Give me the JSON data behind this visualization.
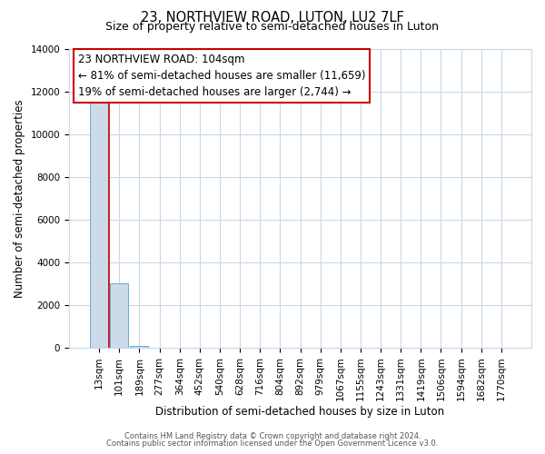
{
  "title": "23, NORTHVIEW ROAD, LUTON, LU2 7LF",
  "subtitle": "Size of property relative to semi-detached houses in Luton",
  "xlabel": "Distribution of semi-detached houses by size in Luton",
  "ylabel": "Number of semi-detached properties",
  "bar_labels": [
    "13sqm",
    "101sqm",
    "189sqm",
    "277sqm",
    "364sqm",
    "452sqm",
    "540sqm",
    "628sqm",
    "716sqm",
    "804sqm",
    "892sqm",
    "979sqm",
    "1067sqm",
    "1155sqm",
    "1243sqm",
    "1331sqm",
    "1419sqm",
    "1506sqm",
    "1594sqm",
    "1682sqm",
    "1770sqm"
  ],
  "bar_values": [
    11500,
    3000,
    100,
    0,
    0,
    0,
    0,
    0,
    0,
    0,
    0,
    0,
    0,
    0,
    0,
    0,
    0,
    0,
    0,
    0,
    0
  ],
  "bar_color": "#ccdaea",
  "bar_edge_color": "#6aaad4",
  "ylim": [
    0,
    14000
  ],
  "yticks": [
    0,
    2000,
    4000,
    6000,
    8000,
    10000,
    12000,
    14000
  ],
  "annotation_line1": "23 NORTHVIEW ROAD: 104sqm",
  "annotation_line2": "← 81% of semi-detached houses are smaller (11,659)",
  "annotation_line3": "19% of semi-detached houses are larger (2,744) →",
  "red_line_x": 0.5,
  "box_color": "#ffffff",
  "box_edge_color": "#cc0000",
  "footer_line1": "Contains HM Land Registry data © Crown copyright and database right 2024.",
  "footer_line2": "Contains public sector information licensed under the Open Government Licence v3.0.",
  "background_color": "#ffffff",
  "grid_color": "#c8d8e8",
  "title_fontsize": 10.5,
  "subtitle_fontsize": 9,
  "annotation_fontsize": 8.5,
  "tick_fontsize": 7.5,
  "ylabel_fontsize": 8.5,
  "xlabel_fontsize": 8.5,
  "footer_fontsize": 6.0
}
